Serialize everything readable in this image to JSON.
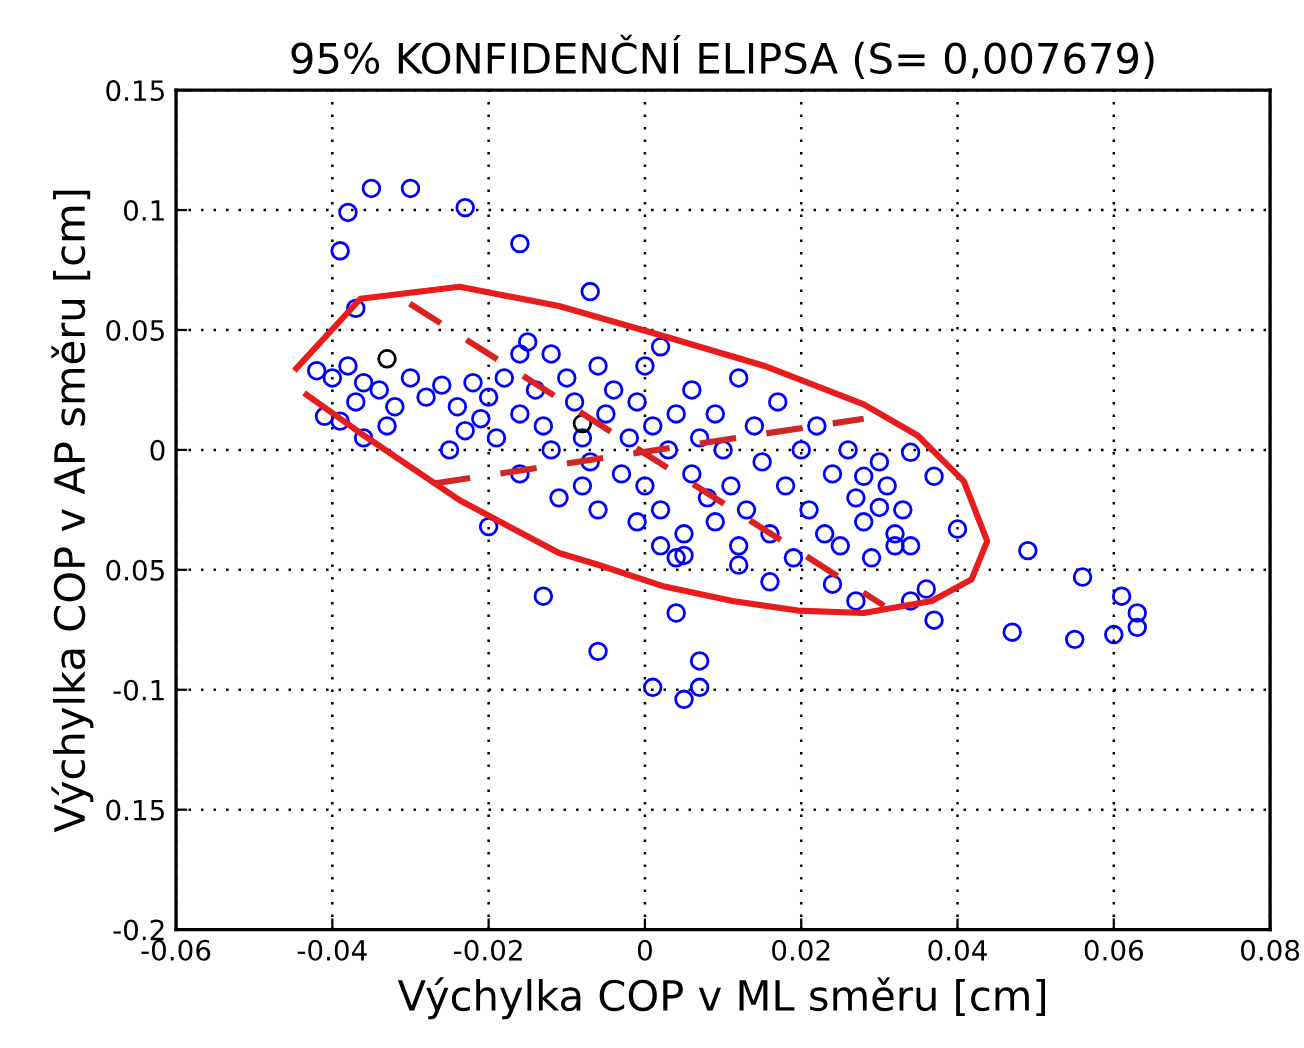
{
  "chart_data": {
    "type": "scatter",
    "title": "95% KONFIDENČNÍ ELIPSA (S= 0,007679)",
    "xlabel": "Výchylka COP v ML směru [cm]",
    "ylabel": "Výchylka COP v AP směru [cm]",
    "xlim": [
      -0.06,
      0.08
    ],
    "xticks": [
      -0.06,
      -0.04,
      -0.02,
      0,
      0.02,
      0.04,
      0.06,
      0.08
    ],
    "ylim": [
      -0.2,
      0.15
    ],
    "yticks": [
      0.15,
      0.1,
      0.05,
      0,
      {
        "value": -0.05,
        "label": "0.05"
      },
      -0.1,
      {
        "value": -0.15,
        "label": "0.15"
      },
      -0.2
    ],
    "grid": true,
    "marker": "circle",
    "series": [
      {
        "color": "#0000ff",
        "x": [
          -0.035,
          -0.03,
          -0.038,
          -0.023,
          -0.039,
          -0.016,
          -0.007,
          -0.037,
          0.002,
          -0.02,
          -0.013,
          0.004,
          -0.006,
          0.007,
          0.001,
          0.007,
          0.005,
          0.005,
          0.012,
          0.04,
          0.049,
          0.056,
          0.061,
          0.063,
          0.063,
          0.06,
          0.055,
          0.047,
          0.037,
          0.03,
          0.036,
          0.034,
          0.027,
          0.024,
          0.016,
          0.037,
          0.034,
          0.028,
          0.032,
          -0.042,
          -0.04,
          -0.038,
          -0.036,
          -0.041,
          -0.039,
          -0.037,
          -0.034,
          -0.032,
          -0.033,
          -0.03,
          -0.028,
          -0.036,
          -0.026,
          -0.024,
          -0.022,
          -0.02,
          -0.023,
          -0.021,
          -0.019,
          -0.025,
          -0.018,
          -0.016,
          -0.015,
          -0.016,
          -0.014,
          -0.013,
          -0.012,
          -0.01,
          -0.009,
          -0.008,
          -0.007,
          -0.006,
          -0.005,
          -0.004,
          -0.003,
          -0.002,
          -0.001,
          0.0,
          0.001,
          0.002,
          0.003,
          0.004,
          0.005,
          0.006,
          0.007,
          0.008,
          0.009,
          0.01,
          0.011,
          0.012,
          0.013,
          0.014,
          0.015,
          0.016,
          0.017,
          0.018,
          0.019,
          0.02,
          0.021,
          0.022,
          0.023,
          0.024,
          0.025,
          0.026,
          0.027,
          0.028,
          0.029,
          0.03,
          0.031,
          0.032,
          0.033,
          0.034,
          -0.011,
          -0.006,
          -0.001,
          0.004,
          -0.016,
          0.009,
          -0.012,
          0.0,
          0.002,
          -0.008,
          0.006,
          0.012
        ],
        "values": [
          0.109,
          0.109,
          0.099,
          0.101,
          0.083,
          0.086,
          0.066,
          0.059,
          0.043,
          -0.032,
          -0.061,
          -0.068,
          -0.084,
          -0.088,
          -0.099,
          -0.099,
          -0.104,
          -0.044,
          -0.048,
          -0.033,
          -0.042,
          -0.053,
          -0.061,
          -0.068,
          -0.074,
          -0.077,
          -0.079,
          -0.076,
          -0.071,
          -0.024,
          -0.058,
          -0.063,
          -0.063,
          -0.056,
          -0.055,
          -0.011,
          -0.001,
          -0.011,
          -0.04,
          0.033,
          0.03,
          0.035,
          0.028,
          0.014,
          0.012,
          0.02,
          0.025,
          0.018,
          0.01,
          0.03,
          0.022,
          0.005,
          0.027,
          0.018,
          0.028,
          0.022,
          0.008,
          0.013,
          0.005,
          0.0,
          0.03,
          0.04,
          0.045,
          0.015,
          0.025,
          0.01,
          0.0,
          0.03,
          0.02,
          0.005,
          -0.005,
          0.035,
          0.015,
          0.025,
          -0.01,
          0.005,
          0.02,
          -0.015,
          0.01,
          -0.025,
          0.0,
          0.015,
          -0.035,
          -0.01,
          0.005,
          -0.02,
          -0.03,
          0.0,
          -0.015,
          0.03,
          -0.025,
          0.01,
          -0.005,
          -0.035,
          0.02,
          -0.015,
          -0.045,
          0.0,
          -0.025,
          0.01,
          -0.035,
          -0.01,
          -0.04,
          0.0,
          -0.02,
          -0.03,
          -0.045,
          -0.005,
          -0.015,
          -0.035,
          -0.025,
          -0.04,
          -0.02,
          -0.025,
          -0.03,
          -0.045,
          -0.01,
          0.015,
          0.04,
          0.035,
          -0.04,
          -0.015,
          0.025,
          -0.04
        ]
      },
      {
        "color": "#000000",
        "x": [
          -0.033,
          -0.008
        ],
        "values": [
          0.038,
          0.011
        ]
      },
      {
        "type": "line",
        "marker": "none",
        "color": "#e81c1c",
        "line_style": "solid",
        "x": [
          -0.0446,
          -0.0364,
          -0.0237,
          -0.011,
          0.0018,
          0.0153,
          0.028,
          0.0349,
          0.0408,
          0.0438,
          0.0418,
          0.0367,
          0.028,
          0.0196,
          0.0112,
          0.0025,
          -0.0059,
          -0.011,
          -0.0237,
          -0.0364,
          -0.0433
        ],
        "values": [
          0.034,
          0.063,
          0.068,
          0.06,
          0.048,
          0.035,
          0.019,
          0.006,
          -0.013,
          -0.038,
          -0.054,
          -0.063,
          -0.068,
          -0.067,
          -0.063,
          -0.057,
          -0.048,
          -0.043,
          -0.021,
          0.007,
          0.023
        ]
      },
      {
        "type": "line",
        "marker": "none",
        "color": "#dc2020",
        "line_style": "dashed",
        "x": [
          -0.0301,
          0.0306
        ],
        "values": [
          0.061,
          -0.065
        ]
      },
      {
        "type": "line",
        "marker": "none",
        "color": "#d02626",
        "line_style": "dashed",
        "x": [
          -0.027,
          0.028
        ],
        "values": [
          -0.014,
          0.013
        ]
      }
    ]
  }
}
